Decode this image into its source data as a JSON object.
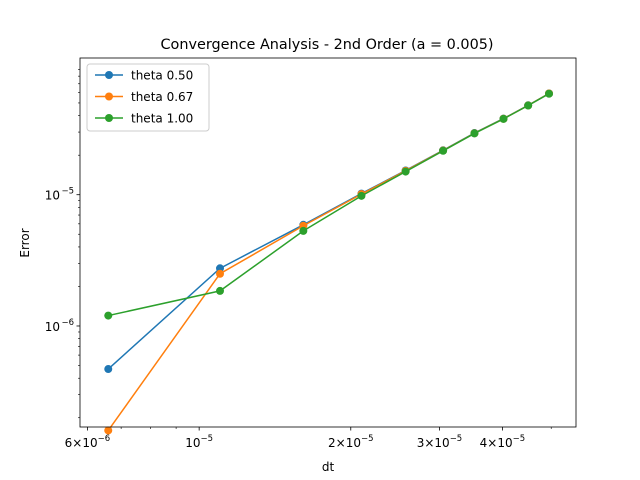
{
  "chart_data": {
    "type": "line",
    "title": "Convergence Analysis - 2nd Order (a = 0.005)",
    "xlabel": "dt",
    "ylabel": "Error",
    "xscale": "log",
    "yscale": "log",
    "xlim": [
      5.8e-06,
      5.6e-05
    ],
    "ylim": [
      1.7e-07,
      0.00011
    ],
    "grid": false,
    "legend_position": "upper-left",
    "x": [
      6.6e-06,
      1.1e-05,
      1.61e-05,
      2.1e-05,
      2.57e-05,
      3.05e-05,
      3.52e-05,
      4.02e-05,
      4.5e-05,
      4.95e-05
    ],
    "series": [
      {
        "name": "theta 0.50",
        "color": "#1f77b4",
        "values": [
          4.7e-07,
          2.75e-06,
          5.9e-06,
          1.02e-05,
          1.53e-05,
          2.18e-05,
          2.95e-05,
          3.8e-05,
          4.8e-05,
          5.9e-05
        ]
      },
      {
        "name": "theta 0.67",
        "color": "#ff7f0e",
        "values": [
          1.6e-07,
          2.5e-06,
          5.8e-06,
          1.01e-05,
          1.52e-05,
          2.17e-05,
          2.94e-05,
          3.79e-05,
          4.79e-05,
          5.9e-05
        ]
      },
      {
        "name": "theta 1.00",
        "color": "#2ca02c",
        "values": [
          1.2e-06,
          1.85e-06,
          5.3e-06,
          9.8e-06,
          1.5e-05,
          2.16e-05,
          2.93e-05,
          3.78e-05,
          4.78e-05,
          5.88e-05
        ]
      }
    ],
    "x_ticks": [
      {
        "value": 6e-06,
        "mantissa": "6",
        "exp": "-6"
      },
      {
        "value": 1e-05,
        "mantissa": "",
        "exp": "-5"
      },
      {
        "value": 2e-05,
        "mantissa": "2",
        "exp": "-5"
      },
      {
        "value": 3e-05,
        "mantissa": "3",
        "exp": "-5"
      },
      {
        "value": 4e-05,
        "mantissa": "4",
        "exp": "-5"
      }
    ],
    "x_minor_ticks": [
      7e-06,
      8e-06,
      9e-06,
      5e-05
    ],
    "y_ticks": [
      {
        "value": 1e-06,
        "exp": "-6"
      },
      {
        "value": 1e-05,
        "exp": "-5"
      }
    ],
    "y_minor_ticks": [
      2e-07,
      3e-07,
      4e-07,
      5e-07,
      6e-07,
      7e-07,
      8e-07,
      9e-07,
      2e-06,
      3e-06,
      4e-06,
      5e-06,
      6e-06,
      7e-06,
      8e-06,
      9e-06,
      2e-05,
      3e-05,
      4e-05,
      5e-05,
      6e-05,
      7e-05,
      8e-05,
      9e-05
    ]
  }
}
